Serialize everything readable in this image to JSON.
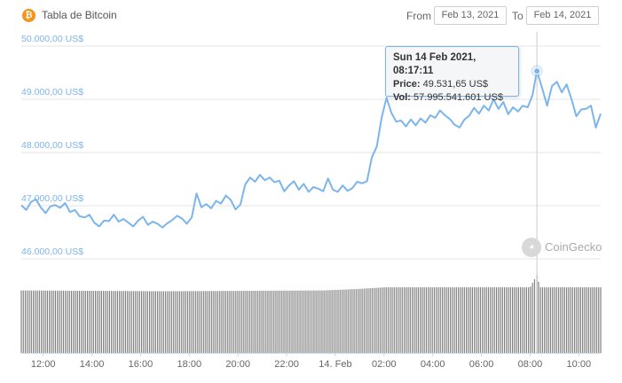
{
  "header": {
    "title": "Tabla de Bitcoin",
    "coin_icon": "bitcoin-icon",
    "from_label": "From",
    "from_value": "Feb 13, 2021",
    "to_label": "To",
    "to_value": "Feb 14, 2021"
  },
  "tooltip": {
    "date": "Sun 14 Feb 2021, 08:17:11",
    "price_label": "Price:",
    "price_value": "49.531,65 US$",
    "vol_label": "Vol:",
    "vol_value": "57.995.541.601 US$"
  },
  "watermark": {
    "text": "CoinGecko",
    "icon": "coingecko-icon"
  },
  "colors": {
    "line": "#7cb5ec",
    "axis_label": "#7cb5ec",
    "volume": "#808080",
    "grid": "#e6e6e6",
    "accent": "#f7931a"
  },
  "chart_data": {
    "type": "line",
    "title": "Tabla de Bitcoin",
    "y_ticks": [
      {
        "value": 50000,
        "label": "50.000,00 US$"
      },
      {
        "value": 49000,
        "label": "49.000,00 US$"
      },
      {
        "value": 48000,
        "label": "48.000,00 US$"
      },
      {
        "value": 47000,
        "label": "47.000,00 US$"
      },
      {
        "value": 46000,
        "label": "46.000,00 US$"
      }
    ],
    "ylim": [
      46000,
      50000
    ],
    "x_domain_hours": [
      11.1,
      34.9
    ],
    "x_ticks": [
      {
        "hour": 12,
        "label": "12:00"
      },
      {
        "hour": 14,
        "label": "14:00"
      },
      {
        "hour": 16,
        "label": "16:00"
      },
      {
        "hour": 18,
        "label": "18:00"
      },
      {
        "hour": 20,
        "label": "20:00"
      },
      {
        "hour": 22,
        "label": "22:00"
      },
      {
        "hour": 24,
        "label": "14. Feb"
      },
      {
        "hour": 26,
        "label": "02:00"
      },
      {
        "hour": 28,
        "label": "04:00"
      },
      {
        "hour": 30,
        "label": "06:00"
      },
      {
        "hour": 32,
        "label": "08:00"
      },
      {
        "hour": 34,
        "label": "10:00"
      }
    ],
    "grid": true,
    "crosshair_hour": 32.28,
    "series": [
      {
        "name": "Price",
        "points": [
          [
            11.1,
            47010
          ],
          [
            11.3,
            46920
          ],
          [
            11.5,
            47070
          ],
          [
            11.7,
            47120
          ],
          [
            11.9,
            46970
          ],
          [
            12.1,
            46860
          ],
          [
            12.3,
            46990
          ],
          [
            12.5,
            47010
          ],
          [
            12.7,
            46960
          ],
          [
            12.9,
            47050
          ],
          [
            13.1,
            46880
          ],
          [
            13.3,
            46920
          ],
          [
            13.5,
            46800
          ],
          [
            13.7,
            46780
          ],
          [
            13.9,
            46830
          ],
          [
            14.1,
            46680
          ],
          [
            14.3,
            46610
          ],
          [
            14.5,
            46720
          ],
          [
            14.7,
            46710
          ],
          [
            14.9,
            46830
          ],
          [
            15.1,
            46700
          ],
          [
            15.3,
            46750
          ],
          [
            15.5,
            46680
          ],
          [
            15.7,
            46610
          ],
          [
            15.9,
            46720
          ],
          [
            16.1,
            46790
          ],
          [
            16.3,
            46640
          ],
          [
            16.5,
            46700
          ],
          [
            16.7,
            46660
          ],
          [
            16.9,
            46590
          ],
          [
            17.1,
            46670
          ],
          [
            17.3,
            46730
          ],
          [
            17.5,
            46810
          ],
          [
            17.7,
            46760
          ],
          [
            17.9,
            46660
          ],
          [
            18.1,
            46780
          ],
          [
            18.3,
            47230
          ],
          [
            18.5,
            46970
          ],
          [
            18.7,
            47030
          ],
          [
            18.9,
            46950
          ],
          [
            19.1,
            47090
          ],
          [
            19.3,
            47040
          ],
          [
            19.5,
            47190
          ],
          [
            19.7,
            47110
          ],
          [
            19.9,
            46930
          ],
          [
            20.1,
            47020
          ],
          [
            20.3,
            47400
          ],
          [
            20.5,
            47530
          ],
          [
            20.7,
            47450
          ],
          [
            20.9,
            47580
          ],
          [
            21.1,
            47480
          ],
          [
            21.3,
            47530
          ],
          [
            21.5,
            47440
          ],
          [
            21.7,
            47470
          ],
          [
            21.9,
            47270
          ],
          [
            22.1,
            47380
          ],
          [
            22.3,
            47460
          ],
          [
            22.5,
            47300
          ],
          [
            22.7,
            47410
          ],
          [
            22.9,
            47260
          ],
          [
            23.1,
            47350
          ],
          [
            23.3,
            47320
          ],
          [
            23.5,
            47270
          ],
          [
            23.7,
            47510
          ],
          [
            23.9,
            47300
          ],
          [
            24.1,
            47260
          ],
          [
            24.3,
            47380
          ],
          [
            24.5,
            47280
          ],
          [
            24.7,
            47330
          ],
          [
            24.9,
            47450
          ],
          [
            25.1,
            47420
          ],
          [
            25.3,
            47460
          ],
          [
            25.5,
            47910
          ],
          [
            25.7,
            48110
          ],
          [
            25.9,
            48650
          ],
          [
            26.1,
            49030
          ],
          [
            26.3,
            48750
          ],
          [
            26.5,
            48580
          ],
          [
            26.7,
            48600
          ],
          [
            26.9,
            48490
          ],
          [
            27.1,
            48620
          ],
          [
            27.3,
            48510
          ],
          [
            27.5,
            48640
          ],
          [
            27.7,
            48560
          ],
          [
            27.9,
            48700
          ],
          [
            28.1,
            48650
          ],
          [
            28.3,
            48790
          ],
          [
            28.5,
            48700
          ],
          [
            28.7,
            48630
          ],
          [
            28.9,
            48520
          ],
          [
            29.1,
            48470
          ],
          [
            29.3,
            48620
          ],
          [
            29.5,
            48690
          ],
          [
            29.7,
            48840
          ],
          [
            29.9,
            48730
          ],
          [
            30.1,
            48880
          ],
          [
            30.3,
            48790
          ],
          [
            30.5,
            49000
          ],
          [
            30.7,
            48820
          ],
          [
            30.9,
            48950
          ],
          [
            31.1,
            48720
          ],
          [
            31.3,
            48850
          ],
          [
            31.5,
            48770
          ],
          [
            31.7,
            48880
          ],
          [
            31.9,
            48850
          ],
          [
            32.1,
            49080
          ],
          [
            32.28,
            49532
          ],
          [
            32.5,
            49200
          ],
          [
            32.7,
            48880
          ],
          [
            32.9,
            49250
          ],
          [
            33.1,
            49330
          ],
          [
            33.3,
            49130
          ],
          [
            33.5,
            49280
          ],
          [
            33.7,
            49000
          ],
          [
            33.9,
            48680
          ],
          [
            34.1,
            48810
          ],
          [
            34.3,
            48820
          ],
          [
            34.5,
            48880
          ],
          [
            34.7,
            48470
          ],
          [
            34.9,
            48730
          ]
        ]
      }
    ],
    "volume": {
      "name": "Vol",
      "note": "relative bar heights, 0-1",
      "levels": [
        [
          11.1,
          0.8
        ],
        [
          17.0,
          0.79
        ],
        [
          23.5,
          0.8
        ],
        [
          25.0,
          0.82
        ],
        [
          26.0,
          0.84
        ],
        [
          28.0,
          0.84
        ],
        [
          30.0,
          0.84
        ],
        [
          32.0,
          0.84
        ],
        [
          32.28,
          1.0
        ],
        [
          32.4,
          0.84
        ],
        [
          34.9,
          0.84
        ]
      ]
    }
  }
}
